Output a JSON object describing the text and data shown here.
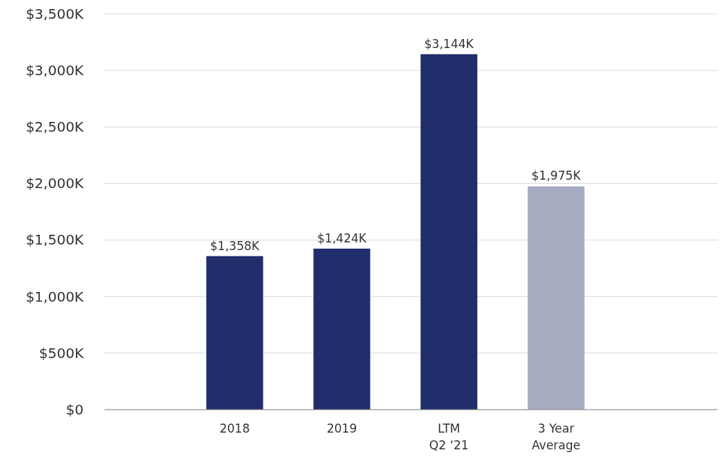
{
  "chart_data": {
    "type": "bar",
    "categories": [
      "2018",
      "2019",
      "LTM\nQ2 ‘21",
      "3 Year\nAverage"
    ],
    "values": [
      1358,
      1424,
      3144,
      1975
    ],
    "colors": [
      "#222d6b",
      "#222d6b",
      "#222d6b",
      "#a8acc2"
    ],
    "data_labels": true,
    "value_labels": [
      "$1,358K",
      "$1,424K",
      "$3,144K",
      "$1,975K"
    ],
    "ylim": [
      0,
      3500
    ],
    "yticks": [
      {
        "value": 0,
        "label": "$0"
      },
      {
        "value": 500,
        "label": "$500K"
      },
      {
        "value": 1000,
        "label": "$1,000K"
      },
      {
        "value": 1500,
        "label": "$1,500K"
      },
      {
        "value": 2000,
        "label": "$2,000K"
      },
      {
        "value": 2500,
        "label": "$2,500K"
      },
      {
        "value": 3000,
        "label": "$3,000K"
      },
      {
        "value": 3500,
        "label": "$3,500K"
      }
    ],
    "grid": "y"
  }
}
